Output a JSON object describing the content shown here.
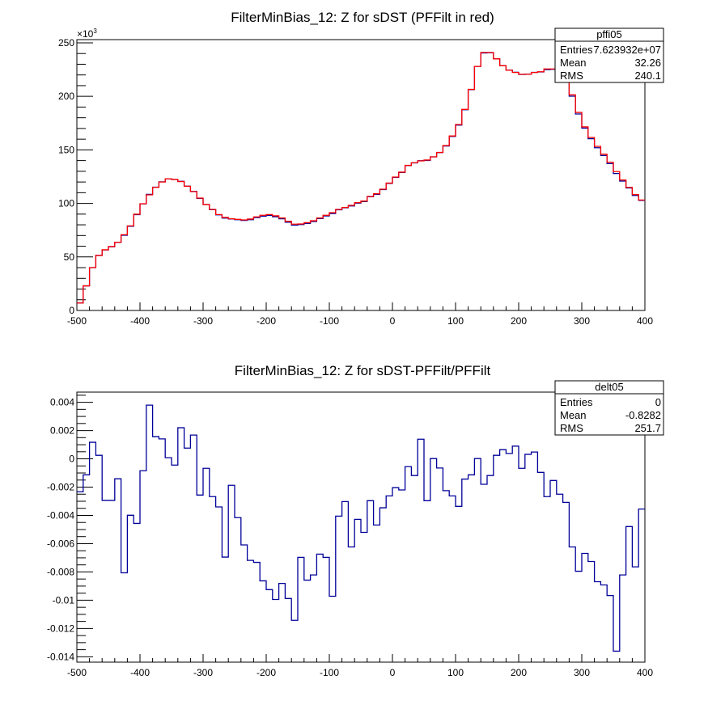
{
  "colors": {
    "pffilt": "#ff0000",
    "sdst": "#000099",
    "ratio": "#000099",
    "axis": "#000000"
  },
  "chart_data": [
    {
      "type": "line",
      "style": "step-histogram",
      "title": "FilterMinBias_12: Z for sDST (PFFilt in red)",
      "xlabel": "",
      "ylabel": "",
      "y_exponent_label": "×10",
      "y_exponent_power": "3",
      "xlim": [
        -500,
        400
      ],
      "ylim": [
        0,
        253
      ],
      "bin_width": 10,
      "x_ticks": [
        "-500",
        "-400",
        "-300",
        "-200",
        "-100",
        "0",
        "100",
        "200",
        "300",
        "400"
      ],
      "y_ticks": [
        "0",
        "50",
        "100",
        "150",
        "200",
        "250"
      ],
      "series": [
        {
          "name": "PFFilt",
          "color": "red",
          "values": [
            7,
            23,
            40,
            51.4,
            56.7,
            59.7,
            63.7,
            70.8,
            79,
            89.9,
            99.7,
            108,
            115,
            120,
            123,
            122.4,
            120.4,
            116,
            111,
            105,
            99,
            94.4,
            89.6,
            86.9,
            85.6,
            85.1,
            84.6,
            85.4,
            87.4,
            88.9,
            89.6,
            88.4,
            86.4,
            83.3,
            80.6,
            80.8,
            82,
            83.8,
            86.4,
            88.9,
            91.4,
            94.4,
            96.2,
            98.2,
            100.7,
            102.2,
            106.5,
            109,
            113.3,
            119,
            124.6,
            129.2,
            135.5,
            138,
            139.7,
            140.5,
            143.5,
            147.6,
            154,
            163,
            173.7,
            187.8,
            206.5,
            228,
            241,
            241,
            235,
            228.6,
            224.4,
            222.3,
            220.6,
            220.6,
            222.3,
            223,
            225.6,
            225.6,
            222.6,
            214,
            201.4,
            185,
            171.5,
            161.6,
            153.3,
            146,
            138.5,
            129.7,
            121.9,
            115,
            108.3,
            103.2
          ]
        },
        {
          "name": "sDST",
          "color": "blue",
          "derived_as": "PFFilt * (1 + ratio)"
        }
      ],
      "stats": {
        "name": "pffi05",
        "rows": [
          {
            "label": "Entries",
            "value": "7.623932e+07"
          },
          {
            "label": "Mean",
            "value": "32.26"
          },
          {
            "label": "RMS",
            "value": "240.1"
          }
        ]
      }
    },
    {
      "type": "line",
      "style": "step-histogram",
      "title": "FilterMinBias_12: Z for sDST-PFFilt/PFFilt",
      "xlabel": "",
      "ylabel": "",
      "xlim": [
        -500,
        400
      ],
      "ylim": [
        -0.01438,
        0.00472
      ],
      "bin_width": 10,
      "x_ticks": [
        "-500",
        "-400",
        "-300",
        "-200",
        "-100",
        "0",
        "100",
        "200",
        "300",
        "400"
      ],
      "y_ticks": [
        "0.004",
        "0.002",
        "0",
        "-0.002",
        "-0.004",
        "-0.006",
        "-0.008",
        "-0.01",
        "-0.012",
        "-0.014"
      ],
      "series": [
        {
          "name": "ratio",
          "color": "blue",
          "scale": 0.001,
          "values": [
            -2.33,
            -1.13,
            1.17,
            0.25,
            -2.94,
            -2.94,
            -1.41,
            -8.06,
            -3.99,
            -4.57,
            -0.84,
            3.8,
            1.57,
            1.41,
            0.08,
            -0.44,
            2.2,
            0.76,
            1.68,
            -2.56,
            -0.67,
            -2.67,
            -3.4,
            -6.95,
            -1.87,
            -4.16,
            -6.09,
            -7.18,
            -7.32,
            -8.63,
            -9.25,
            -9.95,
            -8.81,
            -9.88,
            -11.42,
            -6.97,
            -8.58,
            -8.21,
            -6.74,
            -6.97,
            -9.72,
            -4.05,
            -3.02,
            -6.23,
            -4.28,
            -5.2,
            -2.96,
            -4.68,
            -3.46,
            -2.62,
            -2.04,
            -2.2,
            -0.55,
            -1.18,
            1.39,
            -2.96,
            0.02,
            -0.65,
            -2.25,
            -2.62,
            -3.36,
            -1.43,
            -1.13,
            0.02,
            -1.8,
            -1.18,
            0.25,
            0.65,
            0.38,
            0.9,
            -0.67,
            0.32,
            0.48,
            -0.96,
            -2.67,
            -1.53,
            -2.5,
            -3.08,
            -6.23,
            -7.95,
            -6.69,
            -7.26,
            -8.69,
            -8.92,
            -9.67,
            -13.6,
            -8.21,
            -4.79,
            -7.64,
            -3.55
          ]
        }
      ],
      "stats": {
        "name": "delt05",
        "rows": [
          {
            "label": "Entries",
            "value": "0"
          },
          {
            "label": "Mean",
            "value": "-0.8282"
          },
          {
            "label": "RMS",
            "value": "251.7"
          }
        ]
      }
    }
  ]
}
